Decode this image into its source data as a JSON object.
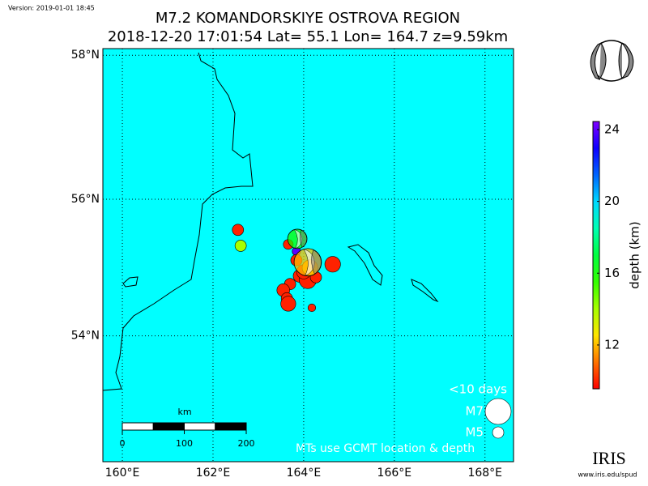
{
  "version": "Version: 2019-01-01 18:45",
  "chart_data": {
    "type": "map",
    "title": "M7.2 KOMANDORSKIYE OSTROVA REGION",
    "subtitle": "2018-12-20 17:01:54 Lat= 55.1 Lon= 164.7 z=9.59km",
    "projection": "mercator",
    "background": "#00ffff",
    "grid": true,
    "xlim": [
      159.57,
      168.63
    ],
    "ylim": [
      52.07,
      58.09
    ],
    "xticks": [
      {
        "value": 160,
        "label": "160°E"
      },
      {
        "value": 162,
        "label": "162°E"
      },
      {
        "value": 164,
        "label": "164°E"
      },
      {
        "value": 166,
        "label": "166°E"
      },
      {
        "value": 168,
        "label": "168°E"
      }
    ],
    "yticks": [
      {
        "value": 54,
        "label": "54°N"
      },
      {
        "value": 56,
        "label": "56°N"
      },
      {
        "value": 58,
        "label": "58°N"
      }
    ],
    "events": [
      {
        "lon": 162.55,
        "lat": 55.56,
        "depth": 10,
        "magnitude": 5.0
      },
      {
        "lon": 162.61,
        "lat": 55.33,
        "depth": 14,
        "magnitude": 5.0
      },
      {
        "lon": 163.66,
        "lat": 55.35,
        "depth": 10,
        "magnitude": 4.8
      },
      {
        "lon": 163.84,
        "lat": 55.25,
        "depth": 24,
        "magnitude": 4.6
      },
      {
        "lon": 163.84,
        "lat": 55.12,
        "depth": 10,
        "magnitude": 5.0
      },
      {
        "lon": 163.91,
        "lat": 54.89,
        "depth": 10,
        "magnitude": 5.2
      },
      {
        "lon": 164.09,
        "lat": 54.83,
        "depth": 10,
        "magnitude": 5.8
      },
      {
        "lon": 164.27,
        "lat": 54.87,
        "depth": 10,
        "magnitude": 5.0
      },
      {
        "lon": 163.7,
        "lat": 54.77,
        "depth": 10,
        "magnitude": 5.0
      },
      {
        "lon": 163.55,
        "lat": 54.68,
        "depth": 10,
        "magnitude": 5.2
      },
      {
        "lon": 163.63,
        "lat": 54.56,
        "depth": 10,
        "magnitude": 5.0
      },
      {
        "lon": 163.66,
        "lat": 54.48,
        "depth": 10,
        "magnitude": 5.5
      },
      {
        "lon": 164.18,
        "lat": 54.42,
        "depth": 10,
        "magnitude": 4.5
      },
      {
        "lon": 164.64,
        "lat": 55.06,
        "depth": 10,
        "magnitude": 5.6
      },
      {
        "lon": 164.0,
        "lat": 54.95,
        "depth": 10,
        "magnitude": 5.4
      },
      {
        "lon": 164.14,
        "lat": 55.01,
        "depth": 12,
        "magnitude": 5.6
      }
    ],
    "mechanisms": [
      {
        "lon": 163.86,
        "lat": 55.43,
        "depth": 16,
        "magnitude": 6.1
      },
      {
        "lon": 164.09,
        "lat": 55.09,
        "depth": 12,
        "magnitude": 7.2
      }
    ],
    "colorbar": {
      "label": "depth (km)",
      "clim": [
        9.56,
        24.45
      ],
      "ticks": [
        12,
        16,
        20,
        24
      ]
    },
    "size_legend": {
      "title": "<10 days",
      "entries": [
        {
          "label": "M7",
          "magnitude": 7
        },
        {
          "label": "M5",
          "magnitude": 5
        }
      ]
    },
    "scale_bar": {
      "label": "km",
      "ticks": [
        0,
        100,
        200
      ]
    },
    "note": "MTs use GCMT location & depth"
  },
  "logo": {
    "name": "IRIS",
    "url": "www.iris.edu/spud"
  }
}
